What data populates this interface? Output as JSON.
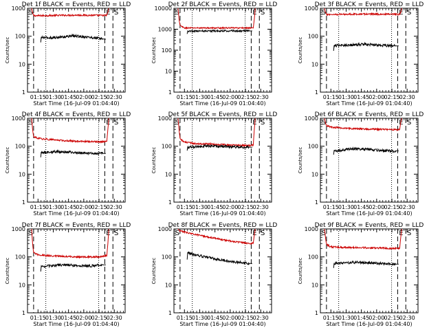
{
  "figure": {
    "ylabel": "Counts/sec",
    "xlabel": "Start Time (16-Jul-09 01:04:40)",
    "x_tick_labels": [
      "01:15",
      "01:30",
      "01:45",
      "02:00",
      "02:15",
      "02:30"
    ],
    "y_tick_labels": [
      "1",
      "10",
      "100",
      "1000"
    ],
    "marker_E": "E",
    "marker_S": "S",
    "colors": {
      "events": "#000000",
      "lld": "#cc0000"
    }
  },
  "chart_data": [
    {
      "type": "line",
      "title": "Det 1f BLACK = Events, RED = LLD",
      "xlabel": "Start Time (16-Jul-09 01:04:40)",
      "ylabel": "Counts/sec",
      "yscale": "log",
      "ylim": [
        1,
        1000
      ],
      "x_unit": "minutes since 01:04:40",
      "xlim": [
        0,
        96
      ],
      "series": [
        {
          "name": "LLD",
          "color": "#cc0000",
          "x": [
            4,
            5,
            6,
            10,
            20,
            35,
            50,
            65,
            75,
            78,
            79,
            80
          ],
          "y": [
            1000,
            700,
            540,
            540,
            550,
            560,
            570,
            560,
            550,
            560,
            700,
            1000
          ]
        },
        {
          "name": "Events",
          "color": "#000000",
          "x": [
            13,
            13.5,
            20,
            28,
            36,
            44,
            52,
            60,
            68,
            74,
            77
          ],
          "y": [
            60,
            90,
            88,
            90,
            95,
            103,
            98,
            92,
            86,
            80,
            78
          ]
        }
      ],
      "events": [
        "E",
        "S"
      ]
    },
    {
      "type": "line",
      "title": "Det 2f BLACK = Events, RED = LLD",
      "xlabel": "Start Time (16-Jul-09 01:04:40)",
      "ylabel": "Counts/sec",
      "yscale": "log",
      "ylim": [
        1,
        10000
      ],
      "x_unit": "minutes since 01:04:40",
      "xlim": [
        0,
        96
      ],
      "series": [
        {
          "name": "LLD",
          "color": "#cc0000",
          "x": [
            4,
            5,
            6,
            10,
            20,
            35,
            50,
            65,
            75,
            78,
            79,
            80
          ],
          "y": [
            10000,
            3000,
            1500,
            1150,
            1150,
            1150,
            1150,
            1150,
            1150,
            1150,
            3000,
            10000
          ]
        },
        {
          "name": "Events",
          "color": "#000000",
          "x": [
            13,
            13.5,
            20,
            28,
            36,
            44,
            52,
            60,
            68,
            74,
            77
          ],
          "y": [
            600,
            800,
            820,
            820,
            830,
            830,
            840,
            840,
            830,
            830,
            830
          ]
        }
      ],
      "events": [
        "E",
        "S"
      ]
    },
    {
      "type": "line",
      "title": "Det 3f BLACK = Events, RED = LLD",
      "xlabel": "Start Time (16-Jul-09 01:04:40)",
      "ylabel": "Counts/sec",
      "yscale": "log",
      "ylim": [
        1,
        1000
      ],
      "x_unit": "minutes since 01:04:40",
      "xlim": [
        0,
        96
      ],
      "series": [
        {
          "name": "LLD",
          "color": "#cc0000",
          "x": [
            4,
            5,
            6,
            10,
            20,
            35,
            50,
            65,
            75,
            78,
            79,
            80
          ],
          "y": [
            1000,
            700,
            600,
            600,
            610,
            620,
            620,
            610,
            600,
            600,
            700,
            1000
          ]
        },
        {
          "name": "Events",
          "color": "#000000",
          "x": [
            13,
            13.5,
            20,
            28,
            36,
            44,
            52,
            60,
            68,
            74,
            77
          ],
          "y": [
            30,
            46,
            47,
            48,
            50,
            52,
            49,
            47,
            46,
            45,
            45
          ]
        }
      ],
      "events": [
        "E",
        "S"
      ]
    },
    {
      "type": "line",
      "title": "Det 4f BLACK = Events, RED = LLD",
      "xlabel": "Start Time (16-Jul-09 01:04:40)",
      "ylabel": "Counts/sec",
      "yscale": "log",
      "ylim": [
        1,
        1000
      ],
      "x_unit": "minutes since 01:04:40",
      "xlim": [
        0,
        96
      ],
      "series": [
        {
          "name": "LLD",
          "color": "#cc0000",
          "x": [
            4,
            5,
            6,
            10,
            20,
            35,
            50,
            65,
            75,
            78,
            79,
            80
          ],
          "y": [
            1000,
            400,
            220,
            190,
            175,
            160,
            150,
            145,
            145,
            150,
            400,
            1000
          ]
        },
        {
          "name": "Events",
          "color": "#000000",
          "x": [
            13,
            13.5,
            20,
            28,
            36,
            44,
            52,
            60,
            68,
            74,
            77
          ],
          "y": [
            40,
            60,
            62,
            64,
            63,
            60,
            58,
            56,
            55,
            55,
            55
          ]
        }
      ],
      "events": [
        "E",
        "S"
      ]
    },
    {
      "type": "line",
      "title": "Det 5f BLACK = Events, RED = LLD",
      "xlabel": "Start Time (16-Jul-09 01:04:40)",
      "ylabel": "Counts/sec",
      "yscale": "log",
      "ylim": [
        1,
        1000
      ],
      "x_unit": "minutes since 01:04:40",
      "xlim": [
        0,
        96
      ],
      "series": [
        {
          "name": "LLD",
          "color": "#cc0000",
          "x": [
            4,
            5,
            6,
            10,
            20,
            35,
            50,
            65,
            75,
            78,
            79,
            80
          ],
          "y": [
            1000,
            400,
            190,
            140,
            125,
            120,
            112,
            108,
            105,
            110,
            400,
            1000
          ]
        },
        {
          "name": "Events",
          "color": "#000000",
          "x": [
            13,
            13.5,
            20,
            28,
            36,
            44,
            52,
            60,
            68,
            74,
            77
          ],
          "y": [
            70,
            90,
            95,
            100,
            102,
            100,
            97,
            95,
            92,
            92,
            92
          ]
        }
      ],
      "events": [
        "E",
        "S"
      ]
    },
    {
      "type": "line",
      "title": "Det 6f BLACK = Events, RED = LLD",
      "xlabel": "Start Time (16-Jul-09 01:04:40)",
      "ylabel": "Counts/sec",
      "yscale": "log",
      "ylim": [
        1,
        1000
      ],
      "x_unit": "minutes since 01:04:40",
      "xlim": [
        0,
        96
      ],
      "series": [
        {
          "name": "LLD",
          "color": "#cc0000",
          "x": [
            4,
            5,
            6,
            10,
            20,
            35,
            50,
            65,
            75,
            78,
            79,
            80
          ],
          "y": [
            1000,
            700,
            550,
            480,
            450,
            420,
            410,
            400,
            390,
            400,
            700,
            1000
          ]
        },
        {
          "name": "Events",
          "color": "#000000",
          "x": [
            13,
            13.5,
            20,
            28,
            36,
            44,
            52,
            60,
            68,
            74,
            77
          ],
          "y": [
            50,
            68,
            70,
            78,
            82,
            78,
            74,
            70,
            68,
            68,
            68
          ]
        }
      ],
      "events": [
        "E",
        "S"
      ]
    },
    {
      "type": "line",
      "title": "Det 7f BLACK = Events, RED = LLD",
      "xlabel": "Start Time (16-Jul-09 01:04:40)",
      "ylabel": "Counts/sec",
      "yscale": "log",
      "ylim": [
        1,
        1000
      ],
      "x_unit": "minutes since 01:04:40",
      "xlim": [
        0,
        96
      ],
      "series": [
        {
          "name": "LLD",
          "color": "#cc0000",
          "x": [
            4,
            5,
            6,
            10,
            20,
            35,
            50,
            65,
            75,
            78,
            79,
            80
          ],
          "y": [
            1000,
            300,
            140,
            120,
            110,
            105,
            100,
            100,
            105,
            110,
            300,
            1000
          ]
        },
        {
          "name": "Events",
          "color": "#000000",
          "x": [
            13,
            13.5,
            20,
            28,
            36,
            44,
            52,
            60,
            68,
            74,
            77
          ],
          "y": [
            30,
            45,
            47,
            50,
            52,
            50,
            48,
            47,
            50,
            52,
            52
          ]
        }
      ],
      "events": [
        "E",
        "S"
      ]
    },
    {
      "type": "line",
      "title": "Det 8f BLACK = Events, RED = LLD",
      "xlabel": "Start Time (16-Jul-09 01:04:40)",
      "ylabel": "Counts/sec",
      "yscale": "log",
      "ylim": [
        1,
        1000
      ],
      "x_unit": "minutes since 01:04:40",
      "xlim": [
        0,
        96
      ],
      "series": [
        {
          "name": "LLD",
          "color": "#cc0000",
          "x": [
            4,
            5,
            6,
            10,
            20,
            35,
            50,
            65,
            75,
            78,
            79,
            80
          ],
          "y": [
            1000,
            900,
            850,
            780,
            650,
            500,
            400,
            330,
            300,
            310,
            600,
            1000
          ]
        },
        {
          "name": "Events",
          "color": "#000000",
          "x": [
            13,
            13.5,
            20,
            28,
            36,
            44,
            52,
            60,
            68,
            74,
            77
          ],
          "y": [
            80,
            140,
            120,
            105,
            92,
            80,
            72,
            66,
            62,
            58,
            58
          ]
        }
      ],
      "events": [
        "E",
        "S"
      ]
    },
    {
      "type": "line",
      "title": "Det 9f BLACK = Events, RED = LLD",
      "xlabel": "Start Time (16-Jul-09 01:04:40)",
      "ylabel": "Counts/sec",
      "yscale": "log",
      "ylim": [
        1,
        1000
      ],
      "x_unit": "minutes since 01:04:40",
      "xlim": [
        0,
        96
      ],
      "series": [
        {
          "name": "LLD",
          "color": "#cc0000",
          "x": [
            4,
            5,
            6,
            10,
            20,
            35,
            50,
            65,
            75,
            78,
            79,
            80
          ],
          "y": [
            1000,
            500,
            280,
            230,
            220,
            215,
            210,
            205,
            200,
            205,
            500,
            1000
          ]
        },
        {
          "name": "Events",
          "color": "#000000",
          "x": [
            13,
            13.5,
            20,
            28,
            36,
            44,
            52,
            60,
            68,
            74,
            77
          ],
          "y": [
            40,
            58,
            60,
            62,
            64,
            62,
            60,
            58,
            56,
            55,
            55
          ]
        }
      ],
      "events": [
        "E",
        "S"
      ]
    }
  ]
}
